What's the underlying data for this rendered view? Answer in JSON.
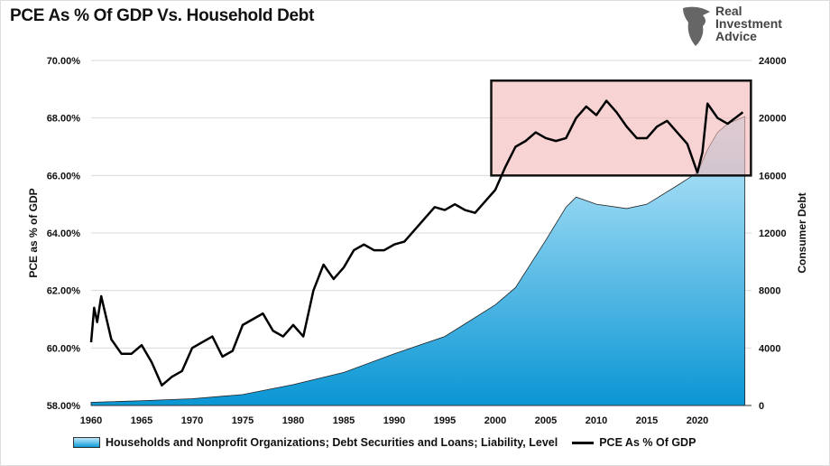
{
  "title": "PCE As % Of GDP Vs. Household Debt",
  "logo": {
    "line1": "Real",
    "line2": "Investment",
    "line3": "Advice"
  },
  "chart_data": {
    "type": "line+area",
    "title": "PCE As % Of GDP Vs. Household Debt",
    "ylabel_left": "PCE as % of GDP",
    "ylabel_right": "Consumer Debt",
    "xlim": [
      1960,
      2025
    ],
    "ylim_left": [
      58,
      70
    ],
    "ylim_right": [
      0,
      24000
    ],
    "x_ticks": [
      "1960",
      "1965",
      "1970",
      "1975",
      "1980",
      "1985",
      "1990",
      "1995",
      "2000",
      "2005",
      "2010",
      "2015",
      "2020"
    ],
    "y_ticks_left": [
      "58.00%",
      "60.00%",
      "62.00%",
      "64.00%",
      "66.00%",
      "68.00%",
      "70.00%"
    ],
    "y_ticks_right": [
      "0",
      "4000",
      "8000",
      "12000",
      "16000",
      "20000",
      "24000"
    ],
    "grid": "horizontal",
    "legend_position": "bottom",
    "series": [
      {
        "name": "Households and Nonprofit Organizations; Debt Securities and Loans; Liability, Level",
        "axis": "right",
        "style": "area",
        "color": "#0a9ad6",
        "x": [
          1960,
          1965,
          1970,
          1975,
          1980,
          1985,
          1990,
          1995,
          2000,
          2002,
          2005,
          2007,
          2008,
          2010,
          2013,
          2015,
          2018,
          2020,
          2021,
          2022,
          2023,
          2024.7
        ],
        "values": [
          220,
          330,
          470,
          760,
          1450,
          2300,
          3600,
          4800,
          7000,
          8200,
          11500,
          13800,
          14500,
          14000,
          13700,
          14000,
          15300,
          16200,
          17800,
          19000,
          19600,
          20100
        ]
      },
      {
        "name": "PCE As % Of GDP",
        "axis": "left",
        "style": "line",
        "color": "#000000",
        "x": [
          1960,
          1960.3,
          1960.6,
          1961,
          1962,
          1963,
          1964,
          1965,
          1966,
          1967,
          1968,
          1969,
          1970,
          1971,
          1972,
          1973,
          1974,
          1975,
          1976,
          1977,
          1978,
          1979,
          1980,
          1981,
          1982,
          1983,
          1984,
          1985,
          1986,
          1987,
          1988,
          1989,
          1990,
          1991,
          1992,
          1993,
          1994,
          1995,
          1996,
          1997,
          1998,
          1999,
          2000,
          2001,
          2002,
          2003,
          2004,
          2005,
          2006,
          2007,
          2008,
          2009,
          2010,
          2011,
          2012,
          2013,
          2014,
          2015,
          2016,
          2017,
          2018,
          2019,
          2020,
          2020.5,
          2021,
          2022,
          2023,
          2024.5
        ],
        "values": [
          60.2,
          61.4,
          60.9,
          61.8,
          60.3,
          59.8,
          59.8,
          60.1,
          59.5,
          58.7,
          59.0,
          59.2,
          60.0,
          60.2,
          60.4,
          59.7,
          59.9,
          60.8,
          61.0,
          61.2,
          60.6,
          60.4,
          60.8,
          60.4,
          62.0,
          62.9,
          62.4,
          62.8,
          63.4,
          63.6,
          63.4,
          63.4,
          63.6,
          63.7,
          64.1,
          64.5,
          64.9,
          64.8,
          65.0,
          64.8,
          64.7,
          65.1,
          65.5,
          66.3,
          67.0,
          67.2,
          67.5,
          67.3,
          67.2,
          67.3,
          68.0,
          68.4,
          68.1,
          68.6,
          68.2,
          67.7,
          67.3,
          67.3,
          67.7,
          67.9,
          67.5,
          67.1,
          66.1,
          66.8,
          68.5,
          68.0,
          67.8,
          68.2
        ]
      }
    ],
    "annotations": [
      {
        "type": "highlight-box",
        "color": "#f4b6b6",
        "x": [
          1999.6,
          2025.3
        ],
        "y_left": [
          66.0,
          69.3
        ]
      }
    ]
  }
}
